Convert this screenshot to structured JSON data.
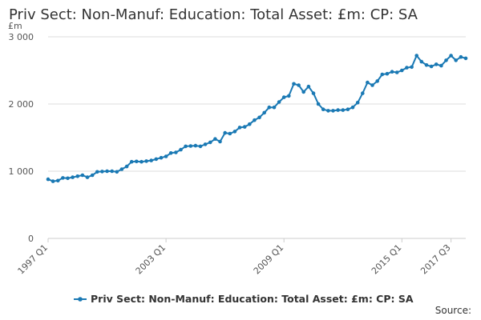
{
  "title": "Priv Sect: Non-Manuf: Education: Total Asset: £m: CP: SA",
  "source_label": "Source:",
  "chart_data": {
    "type": "line",
    "ylabel": "£m",
    "ylim": [
      0,
      3000
    ],
    "yticks": [
      {
        "value": 0,
        "label": "0"
      },
      {
        "value": 1000,
        "label": "1 000"
      },
      {
        "value": 2000,
        "label": "2 000"
      },
      {
        "value": 3000,
        "label": "3 000"
      }
    ],
    "xticks": [
      {
        "index": 0,
        "label": "1997 Q1"
      },
      {
        "index": 24,
        "label": "2003 Q1"
      },
      {
        "index": 48,
        "label": "2009 Q1"
      },
      {
        "index": 72,
        "label": "2015 Q1"
      },
      {
        "index": 82,
        "label": "2017 Q3"
      }
    ],
    "grid": true,
    "legend_position": "bottom",
    "series": [
      {
        "name": "Priv Sect: Non-Manuf: Education: Total Asset: £m: CP: SA",
        "color": "#1a79b4",
        "start": "1997 Q1",
        "frequency": "quarterly",
        "values": [
          880,
          850,
          860,
          900,
          895,
          910,
          925,
          940,
          910,
          940,
          990,
          995,
          1000,
          1000,
          990,
          1030,
          1070,
          1140,
          1145,
          1140,
          1150,
          1160,
          1180,
          1200,
          1220,
          1270,
          1280,
          1320,
          1370,
          1375,
          1380,
          1370,
          1400,
          1430,
          1480,
          1440,
          1570,
          1560,
          1590,
          1650,
          1660,
          1700,
          1760,
          1800,
          1870,
          1950,
          1950,
          2030,
          2100,
          2120,
          2300,
          2280,
          2180,
          2260,
          2160,
          2000,
          1920,
          1900,
          1900,
          1910,
          1910,
          1920,
          1950,
          2020,
          2160,
          2320,
          2280,
          2340,
          2440,
          2450,
          2480,
          2470,
          2500,
          2540,
          2550,
          2720,
          2630,
          2580,
          2560,
          2590,
          2570,
          2650,
          2720,
          2650,
          2700,
          2680
        ]
      }
    ]
  }
}
